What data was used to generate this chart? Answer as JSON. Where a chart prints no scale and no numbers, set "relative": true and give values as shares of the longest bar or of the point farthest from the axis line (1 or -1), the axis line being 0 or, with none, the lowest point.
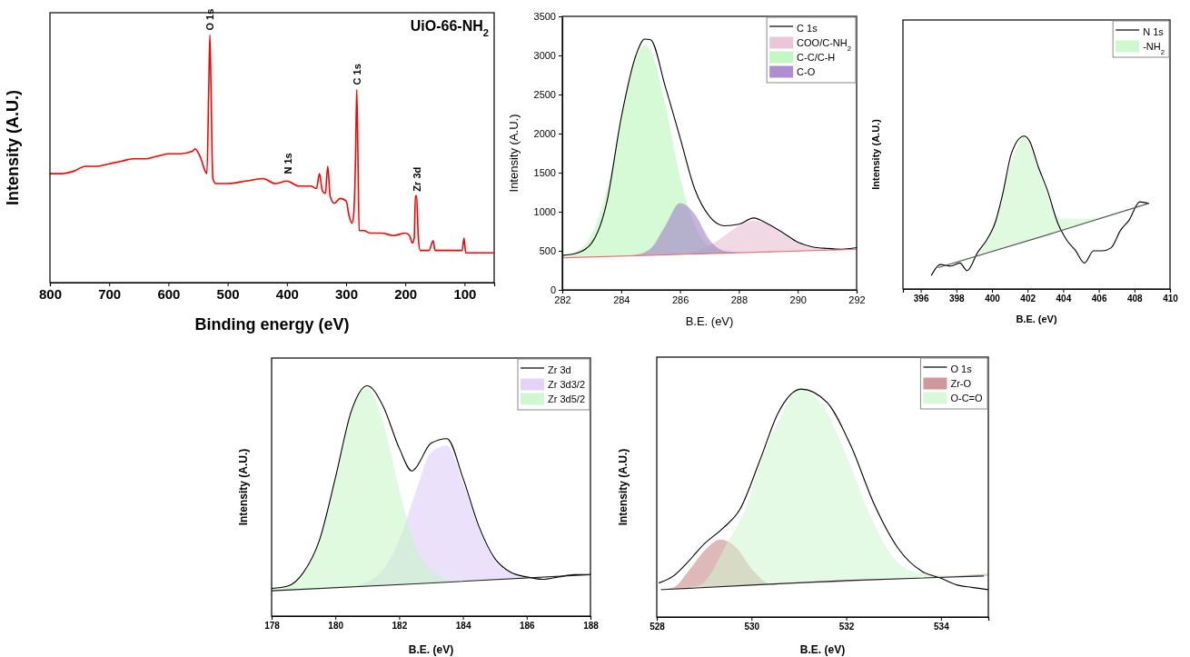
{
  "chart_data": [
    {
      "type": "line",
      "title": "UiO-66-NH$_{2}$",
      "xlabel": "Binding energy (eV)",
      "ylabel": "Intensity (A.U.)",
      "relative": true,
      "xlim": [
        800,
        50
      ],
      "xticks": [
        800,
        700,
        600,
        500,
        400,
        300,
        200,
        100
      ],
      "legend": false,
      "series": [
        {
          "color": "#ff0000",
          "x": [
            800,
            780,
            760,
            740,
            720,
            700,
            680,
            660,
            640,
            620,
            600,
            580,
            560,
            555,
            545,
            538,
            535,
            532,
            530,
            528,
            525,
            520,
            500,
            470,
            440,
            420,
            400,
            380,
            360,
            350,
            345,
            340,
            335,
            331,
            327,
            320,
            310,
            300,
            295,
            290,
            287,
            284,
            282,
            280,
            278,
            270,
            260,
            240,
            220,
            200,
            193,
            188,
            185,
            183,
            181,
            178,
            175,
            160,
            153,
            150,
            120,
            104,
            101,
            98,
            80,
            60,
            52
          ],
          "values": [
            0.44,
            0.44,
            0.45,
            0.47,
            0.47,
            0.48,
            0.49,
            0.5,
            0.5,
            0.51,
            0.52,
            0.52,
            0.53,
            0.54,
            0.5,
            0.45,
            0.44,
            0.77,
            1.0,
            0.77,
            0.42,
            0.4,
            0.4,
            0.41,
            0.42,
            0.4,
            0.41,
            0.39,
            0.39,
            0.38,
            0.44,
            0.37,
            0.36,
            0.47,
            0.35,
            0.32,
            0.34,
            0.33,
            0.27,
            0.24,
            0.28,
            0.51,
            0.78,
            0.51,
            0.21,
            0.21,
            0.2,
            0.2,
            0.19,
            0.2,
            0.19,
            0.16,
            0.18,
            0.35,
            0.35,
            0.18,
            0.13,
            0.13,
            0.17,
            0.13,
            0.13,
            0.13,
            0.18,
            0.12,
            0.12,
            0.12,
            0.12
          ]
        }
      ],
      "annotations": [
        {
          "text": "O 1s",
          "x": 530,
          "y": 1.0
        },
        {
          "text": "N 1s",
          "x": 398,
          "y": 0.42
        },
        {
          "text": "C 1s",
          "x": 282,
          "y": 0.78
        },
        {
          "text": "Zr 3d",
          "x": 181,
          "y": 0.35
        }
      ]
    },
    {
      "type": "area",
      "xlabel": "B.E. (eV)",
      "ylabel": "Intensity (A.U.)",
      "xlim": [
        282,
        292
      ],
      "xticks": [
        282,
        284,
        286,
        288,
        290,
        292
      ],
      "ylim": [
        0,
        3500
      ],
      "yticks": [
        0,
        500,
        1000,
        1500,
        2000,
        2500,
        3000,
        3500
      ],
      "legend": "top right",
      "series": [
        {
          "name": "C 1s",
          "type": "line",
          "color": "#000000",
          "x": [
            282,
            282.5,
            283,
            283.5,
            284,
            284.5,
            284.8,
            285,
            285.5,
            286,
            286.5,
            287,
            287.5,
            288,
            288.5,
            289,
            289.5,
            290,
            290.5,
            291,
            291.5,
            292
          ],
          "values": [
            440,
            470,
            600,
            1100,
            2200,
            3000,
            3210,
            3200,
            2600,
            1950,
            1290,
            940,
            820,
            840,
            920,
            840,
            730,
            610,
            550,
            530,
            520,
            540
          ]
        },
        {
          "name": "COO/C-NH$_{2}$",
          "color": "#e6b8d0",
          "x": [
            282,
            282.5,
            283,
            283.5,
            284,
            284.5,
            285,
            285.5,
            286,
            286.5,
            287,
            287.5,
            288,
            288.5,
            289,
            289.5,
            290,
            290.5,
            291,
            291.5,
            292
          ],
          "values": [
            410,
            420,
            420,
            430,
            430,
            440,
            440,
            450,
            460,
            490,
            570,
            690,
            820,
            890,
            830,
            710,
            600,
            540,
            520,
            520,
            520
          ]
        },
        {
          "name": "C-C/C-H",
          "color": "#b3f5b3",
          "x": [
            282,
            282.5,
            283,
            283.5,
            284,
            284.5,
            284.8,
            285,
            285.5,
            286,
            286.5,
            287,
            287.5,
            288,
            288.5,
            289,
            289.5,
            290,
            290.5,
            291,
            291.5,
            292
          ],
          "values": [
            420,
            490,
            710,
            1260,
            2160,
            2970,
            3130,
            3060,
            2370,
            1450,
            830,
            560,
            490,
            480,
            480,
            490,
            490,
            500,
            500,
            510,
            510,
            520
          ]
        },
        {
          "name": "C-O",
          "color": "#9b72c4",
          "x": [
            282,
            282.5,
            283,
            283.5,
            284,
            284.5,
            285,
            285.5,
            286,
            286.5,
            287,
            287.5,
            288,
            288.5,
            289,
            289.5,
            290,
            290.5,
            291,
            291.5,
            292
          ],
          "values": [
            410,
            420,
            420,
            430,
            430,
            450,
            530,
            820,
            1110,
            970,
            640,
            500,
            480,
            480,
            490,
            490,
            500,
            500,
            510,
            510,
            520
          ]
        },
        {
          "type": "line",
          "color": "#e87070",
          "x": [
            282,
            287.5,
            292
          ],
          "values": [
            410,
            470,
            520
          ]
        }
      ]
    },
    {
      "type": "area",
      "xlabel": "B.E. (eV)",
      "ylabel": "Intensity (A.U.)",
      "relative": true,
      "xlim": [
        395,
        410
      ],
      "xticks": [
        396,
        398,
        400,
        402,
        404,
        406,
        408,
        410
      ],
      "legend": "top right",
      "series": [
        {
          "name": "N 1s",
          "type": "line",
          "color": "#000000",
          "x": [
            396.6,
            397.1,
            397.7,
            398.2,
            398.6,
            399.2,
            399.7,
            400.2,
            400.6,
            401.1,
            401.8,
            402.1,
            402.6,
            403.1,
            403.7,
            404.2,
            404.7,
            405.2,
            405.7,
            406.2,
            406.7,
            407.2,
            407.7,
            408.3,
            408.8
          ],
          "values": [
            0.09,
            0.16,
            0.15,
            0.17,
            0.12,
            0.24,
            0.32,
            0.44,
            0.62,
            0.89,
            1.0,
            0.97,
            0.8,
            0.65,
            0.43,
            0.32,
            0.25,
            0.17,
            0.25,
            0.25,
            0.27,
            0.38,
            0.45,
            0.57,
            0.56
          ]
        },
        {
          "name": "-NH$_{2}$",
          "color": "#c4f5c4",
          "x": [
            397,
            398,
            399,
            399.5,
            400,
            400.5,
            401,
            401.5,
            401.8,
            402,
            402.5,
            403,
            403.5,
            404,
            404.5,
            405,
            406,
            407,
            408,
            408.8
          ],
          "values": [
            0.14,
            0.17,
            0.21,
            0.27,
            0.4,
            0.58,
            0.8,
            0.95,
            1.0,
            0.97,
            0.82,
            0.66,
            0.5,
            0.46,
            0.46,
            0.46,
            0.47,
            0.5,
            0.53,
            0.56
          ]
        },
        {
          "type": "line",
          "color": "#555555",
          "x": [
            397,
            403,
            408.8
          ],
          "values": [
            0.14,
            0.35,
            0.56
          ]
        }
      ]
    },
    {
      "type": "area",
      "xlabel": "B.E. (eV)",
      "ylabel": "Intensity (A.U.)",
      "relative": true,
      "xlim": [
        178,
        188
      ],
      "xticks": [
        178,
        180,
        182,
        184,
        186,
        188
      ],
      "legend": "top right",
      "series": [
        {
          "name": "Zr 3d",
          "type": "line",
          "color": "#000000",
          "x": [
            178,
            178.5,
            179,
            179.5,
            180,
            180.5,
            181,
            181.5,
            182,
            182.4,
            182.5,
            183,
            183.5,
            184,
            184.5,
            185,
            185.5,
            186,
            186.5,
            187,
            187.5,
            188
          ],
          "values": [
            0.12,
            0.13,
            0.19,
            0.33,
            0.6,
            0.89,
            1.0,
            0.91,
            0.73,
            0.63,
            0.64,
            0.75,
            0.77,
            0.6,
            0.39,
            0.25,
            0.19,
            0.17,
            0.16,
            0.17,
            0.18,
            0.18
          ]
        },
        {
          "name": "Zr 3d3/2",
          "color": "#dcc8f5",
          "x": [
            178,
            178.5,
            179,
            179.5,
            180,
            180.5,
            181,
            181.5,
            182,
            182.5,
            183,
            183.5,
            184,
            184.5,
            185,
            185.5,
            186,
            186.5,
            187,
            187.5,
            188
          ],
          "values": [
            0.11,
            0.12,
            0.12,
            0.12,
            0.13,
            0.13,
            0.15,
            0.2,
            0.33,
            0.53,
            0.71,
            0.74,
            0.58,
            0.38,
            0.24,
            0.19,
            0.17,
            0.17,
            0.17,
            0.18,
            0.18
          ]
        },
        {
          "name": "Zr 3d5/2",
          "color": "#c4f5c4",
          "x": [
            178,
            178.5,
            179,
            179.5,
            180,
            180.5,
            181,
            181.5,
            182,
            182.5,
            183,
            183.5,
            184,
            184.5,
            185,
            185.5,
            186,
            186.5,
            187,
            187.5,
            188
          ],
          "values": [
            0.12,
            0.13,
            0.18,
            0.33,
            0.59,
            0.89,
            0.99,
            0.84,
            0.55,
            0.31,
            0.2,
            0.16,
            0.15,
            0.16,
            0.16,
            0.16,
            0.17,
            0.17,
            0.17,
            0.18,
            0.18
          ]
        },
        {
          "type": "line",
          "color": "#222222",
          "x": [
            178,
            182.5,
            188
          ],
          "values": [
            0.11,
            0.14,
            0.18
          ]
        }
      ]
    },
    {
      "type": "area",
      "xlabel": "B.E. (eV)",
      "ylabel": "Intensity (A.U.)",
      "relative": true,
      "xlim": [
        528,
        535
      ],
      "xticks": [
        528,
        530,
        532,
        534
      ],
      "legend": "top right",
      "series": [
        {
          "name": "O 1s",
          "type": "line",
          "color": "#000000",
          "x": [
            528.05,
            528.35,
            528.65,
            529,
            529.4,
            529.75,
            530.2,
            530.55,
            531.05,
            531.6,
            532.1,
            532.6,
            533.1,
            533.6,
            534,
            534.35,
            534.65,
            535
          ],
          "values": [
            0.15,
            0.18,
            0.24,
            0.32,
            0.39,
            0.47,
            0.7,
            0.89,
            1.0,
            0.94,
            0.75,
            0.49,
            0.3,
            0.2,
            0.17,
            0.14,
            0.13,
            0.12
          ]
        },
        {
          "name": "Zr-O",
          "color": "#c48080",
          "x": [
            528,
            528.35,
            528.7,
            529,
            529.35,
            529.65,
            530.05,
            530.45,
            530.8,
            531.5,
            532.5,
            533.5,
            535
          ],
          "values": [
            0.12,
            0.13,
            0.21,
            0.29,
            0.34,
            0.31,
            0.2,
            0.14,
            0.15,
            0.15,
            0.16,
            0.17,
            0.19
          ]
        },
        {
          "name": "O-C=O",
          "color": "#d0f5d0",
          "x": [
            528,
            528.5,
            528.9,
            529.5,
            529.9,
            530.2,
            530.6,
            531,
            531.5,
            532,
            532.5,
            533,
            533.4,
            533.7,
            534.5,
            535
          ],
          "values": [
            0.12,
            0.13,
            0.14,
            0.33,
            0.49,
            0.69,
            0.87,
            1.0,
            0.93,
            0.71,
            0.45,
            0.26,
            0.2,
            0.19,
            0.18,
            0.19
          ]
        },
        {
          "type": "line",
          "color": "#222222",
          "x": [
            528.1,
            530,
            532,
            534.9
          ],
          "values": [
            0.12,
            0.14,
            0.16,
            0.18
          ]
        }
      ]
    }
  ]
}
